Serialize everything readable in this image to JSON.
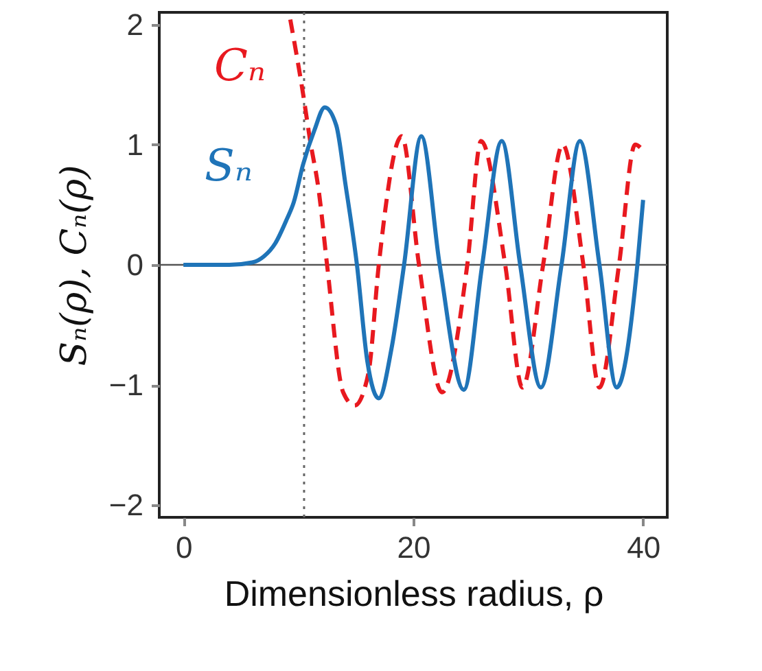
{
  "chart_data": {
    "type": "line",
    "xlabel": "Dimensionless radius, ρ",
    "ylabel": "Sₙ(ρ), Cₙ(ρ)",
    "xlim": [
      -2.1,
      42.1
    ],
    "ylim": [
      -2.1,
      2.1
    ],
    "xticks": [
      0,
      20,
      40
    ],
    "yticks": [
      -2,
      -1,
      0,
      1,
      2
    ],
    "grid": false,
    "legend": false,
    "marker": "none",
    "series": [
      {
        "name": "Cₙ",
        "color": "#e8191f",
        "line_style": "dashed",
        "x": [
          9.3,
          10.4,
          11.0,
          11.8,
          12.5,
          13.9,
          14.9,
          16.1,
          17.0,
          19.0,
          20.5,
          22.5,
          24.7,
          25.9,
          28.0,
          29.5,
          31.3,
          33.0,
          34.8,
          36.2,
          37.9,
          39.3,
          40.0
        ],
        "values": [
          2.04,
          1.43,
          1.05,
          0.6,
          0,
          -1.06,
          -1.17,
          -0.9,
          0,
          1.07,
          0,
          -1.06,
          0,
          1.03,
          0,
          -1.02,
          0,
          1.0,
          0,
          -1.02,
          0,
          1.0,
          0.95
        ]
      },
      {
        "name": "Sₙ",
        "color": "#1f74b8",
        "line_style": "solid",
        "x": [
          0,
          4,
          6,
          7,
          8,
          9,
          9.6,
          10.4,
          11.4,
          12.3,
          13.3,
          14.1,
          15.1,
          16.0,
          17.0,
          18.1,
          19.2,
          20.7,
          22.3,
          24.4,
          26.0,
          27.7,
          29.3,
          31.1,
          32.9,
          34.5,
          36.2,
          37.7,
          39.5,
          40.0
        ],
        "values": [
          0,
          0,
          0.02,
          0.07,
          0.18,
          0.38,
          0.52,
          0.83,
          1.12,
          1.31,
          1.16,
          0.67,
          0,
          -0.8,
          -1.11,
          -0.7,
          0,
          1.07,
          0,
          -1.04,
          0,
          1.03,
          0,
          -1.02,
          0,
          1.03,
          0,
          -1.02,
          0,
          0.54
        ]
      }
    ],
    "ref_lines": [
      {
        "axis": "y",
        "value": 0,
        "color": "#555555",
        "line_style": "solid"
      },
      {
        "axis": "x",
        "value": 10.5,
        "color": "#666666",
        "line_style": "dotted"
      }
    ]
  }
}
